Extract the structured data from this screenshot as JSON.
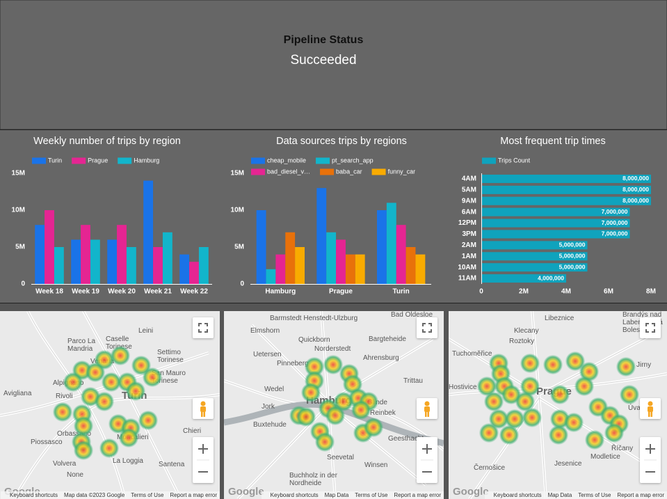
{
  "status": {
    "title": "Pipeline Status",
    "value": "Succeeded"
  },
  "chart_data": [
    {
      "type": "bar",
      "title": "Weekly number of trips by region",
      "categories": [
        "Week 18",
        "Week 19",
        "Week 20",
        "Week 21",
        "Week 22"
      ],
      "series": [
        {
          "name": "Turin",
          "color": "#1a73e8",
          "values": [
            8000000,
            6000000,
            6000000,
            14000000,
            4000000
          ]
        },
        {
          "name": "Prague",
          "color": "#e52592",
          "values": [
            10000000,
            8000000,
            8000000,
            5000000,
            3000000
          ]
        },
        {
          "name": "Hamburg",
          "color": "#12b5cb",
          "values": [
            5000000,
            6000000,
            5000000,
            7000000,
            5000000
          ]
        }
      ],
      "ylim": [
        0,
        15000000
      ],
      "yticks": [
        0,
        {
          "value": 5000000,
          "label": "5M"
        },
        {
          "value": 10000000,
          "label": "10M"
        },
        {
          "value": 15000000,
          "label": "15M"
        }
      ],
      "legend": "top"
    },
    {
      "type": "bar",
      "title": "Data sources trips by regions",
      "categories": [
        "Hamburg",
        "Prague",
        "Turin"
      ],
      "series": [
        {
          "name": "cheap_mobile",
          "color": "#1a73e8",
          "values": [
            10000000,
            13000000,
            10000000
          ]
        },
        {
          "name": "pt_search_app",
          "color": "#12b5cb",
          "values": [
            2000000,
            7000000,
            11000000
          ]
        },
        {
          "name": "bad_diesel_v…",
          "color": "#e52592",
          "values": [
            4000000,
            6000000,
            8000000
          ]
        },
        {
          "name": "baba_car",
          "color": "#e8710a",
          "values": [
            7000000,
            4000000,
            5000000
          ]
        },
        {
          "name": "funny_car",
          "color": "#f9ab00",
          "values": [
            5000000,
            4000000,
            4000000
          ]
        }
      ],
      "ylim": [
        0,
        15000000
      ],
      "yticks": [
        0,
        {
          "value": 5000000,
          "label": "5M"
        },
        {
          "value": 10000000,
          "label": "10M"
        },
        {
          "value": 15000000,
          "label": "15M"
        }
      ],
      "legend": "top"
    },
    {
      "type": "hbar",
      "title": "Most frequent trip times",
      "categories": [
        "4AM",
        "5AM",
        "9AM",
        "6AM",
        "12PM",
        "3PM",
        "2AM",
        "1AM",
        "10AM",
        "11AM"
      ],
      "series": [
        {
          "name": "Trips Count",
          "color": "#0fa3bd",
          "values": [
            8000000,
            8000000,
            8000000,
            7000000,
            7000000,
            7000000,
            5000000,
            5000000,
            5000000,
            4000000
          ],
          "value_labels": [
            "8,000,000",
            "8,000,000",
            "8,000,000",
            "7,000,000",
            "7,000,000",
            "7,000,000",
            "5,000,000",
            "5,000,000",
            "5,000,000",
            "4,000,000"
          ]
        }
      ],
      "xlim": [
        0,
        8000000
      ],
      "xticks": [
        0,
        {
          "value": 2000000,
          "label": "2M"
        },
        {
          "value": 4000000,
          "label": "4M"
        },
        {
          "value": 6000000,
          "label": "6M"
        },
        {
          "value": 8000000,
          "label": "8M"
        }
      ],
      "legend": "top"
    }
  ],
  "maps": [
    {
      "labels": [
        "Parco La Mandria",
        "Caselle Torinese",
        "Leini",
        "Settimo Torinese",
        "Venaria",
        "Alpignano",
        "San Mauro Torinese",
        "Avigliana",
        "Rivoli",
        "Turin",
        "Orbassano",
        "Moncalieri",
        "Chieri",
        "Piossasco",
        "La Loggia",
        "Santena",
        "Volvera",
        "None"
      ],
      "footer": [
        "Keyboard shortcuts",
        "Map data ©2023 Google",
        "Terms of Use",
        "Report a map error"
      ],
      "logo": "Google"
    },
    {
      "labels": [
        "Barmstedt Henstedt-Ulzburg",
        "Bad Oldesloe",
        "Elmshorn",
        "Quickborn",
        "Norderstedt",
        "Bargteheide",
        "Uetersen",
        "Ahrensburg",
        "Pinneberg",
        "Trittau",
        "Wedel",
        "Jork",
        "Hamburg",
        "Glinde",
        "Reinbek",
        "Buxtehude",
        "Geesthacht",
        "Seevetal",
        "Winsen",
        "Buchholz in der Nordheide"
      ],
      "footer": [
        "Keyboard shortcuts",
        "Map Data",
        "Terms of Use",
        "Report a map error"
      ],
      "logo": "Google"
    },
    {
      "labels": [
        "Libeznice",
        "Brandýs nad Labem-Stará Boleslav",
        "Klecany",
        "Roztoky",
        "Tuchoměřice",
        "Jirny",
        "Hostivice",
        "Prague",
        "Úvaly",
        "Černošice",
        "Jesenice",
        "Modletice",
        "Říčany"
      ],
      "footer": [
        "Keyboard shortcuts",
        "Map Data",
        "Terms of Use",
        "Report a map error"
      ],
      "logo": "Google"
    }
  ]
}
